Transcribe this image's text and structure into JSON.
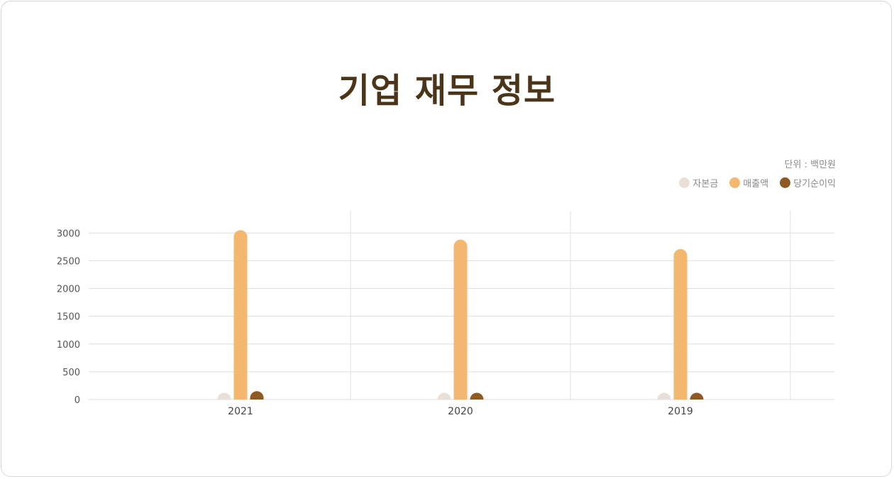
{
  "chart_data": {
    "type": "bar",
    "title": "기업 재무 정보",
    "unit_label": "단위 : 백만원",
    "categories": [
      "2021",
      "2020",
      "2019"
    ],
    "series": [
      {
        "name": "자본금",
        "color": "#e8e0d8",
        "values": [
          10,
          10,
          10
        ]
      },
      {
        "name": "매출액",
        "color": "#f3b770",
        "values": [
          3050,
          2880,
          2710
        ]
      },
      {
        "name": "당기순이익",
        "color": "#8f5a22",
        "values": [
          150,
          15,
          15
        ]
      }
    ],
    "y_ticks": [
      0,
      500,
      1000,
      1500,
      2000,
      2500,
      3000
    ],
    "ylim": [
      0,
      3400
    ],
    "grid": true,
    "legend_position": "top-right"
  }
}
